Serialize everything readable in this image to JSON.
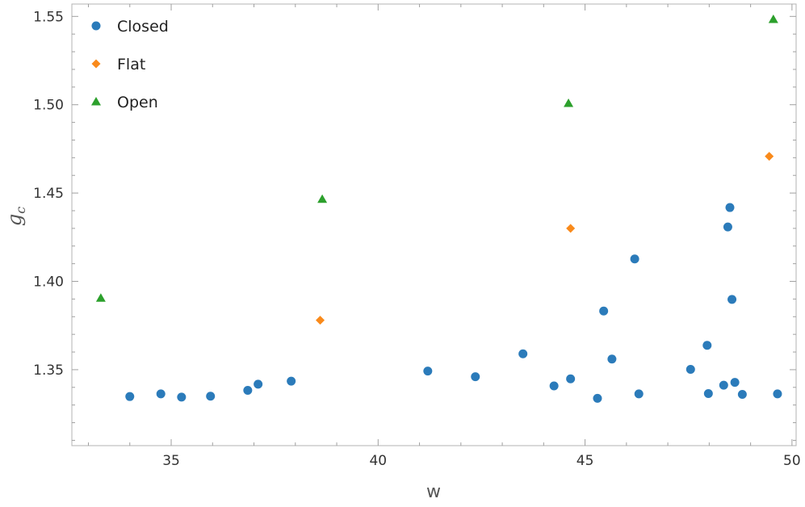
{
  "chart_data": {
    "type": "scatter",
    "xlabel": "w",
    "ylabel_main": "g",
    "ylabel_sub": "c",
    "xlim": [
      32.6,
      50.1
    ],
    "ylim": [
      1.307,
      1.557
    ],
    "x_ticks": [
      35,
      40,
      45,
      50
    ],
    "x_tick_labels": [
      "35",
      "40",
      "45",
      "50"
    ],
    "y_ticks": [
      1.35,
      1.4,
      1.45,
      1.5,
      1.55
    ],
    "y_tick_labels": [
      "1.35",
      "1.40",
      "1.45",
      "1.50",
      "1.55"
    ],
    "grid": false,
    "legend_position": "top-left",
    "series": [
      {
        "name": "Closed",
        "marker": "circle",
        "color": "#2b7bba",
        "points": [
          [
            34.0,
            1.3348
          ],
          [
            34.75,
            1.3363
          ],
          [
            35.25,
            1.3345
          ],
          [
            35.95,
            1.335
          ],
          [
            36.85,
            1.3383
          ],
          [
            37.1,
            1.3418
          ],
          [
            37.9,
            1.3435
          ],
          [
            41.2,
            1.3492
          ],
          [
            42.35,
            1.346
          ],
          [
            43.5,
            1.359
          ],
          [
            44.25,
            1.3408
          ],
          [
            44.65,
            1.3448
          ],
          [
            45.3,
            1.3338
          ],
          [
            45.45,
            1.3832
          ],
          [
            45.65,
            1.356
          ],
          [
            46.2,
            1.4127
          ],
          [
            46.3,
            1.3363
          ],
          [
            47.55,
            1.3502
          ],
          [
            47.95,
            1.3638
          ],
          [
            47.98,
            1.3365
          ],
          [
            48.35,
            1.3412
          ],
          [
            48.45,
            1.4308
          ],
          [
            48.5,
            1.4418
          ],
          [
            48.55,
            1.3898
          ],
          [
            48.62,
            1.3428
          ],
          [
            48.8,
            1.336
          ],
          [
            49.65,
            1.3363
          ]
        ]
      },
      {
        "name": "Flat",
        "marker": "diamond",
        "color": "#f98a1b",
        "points": [
          [
            38.6,
            1.378
          ],
          [
            44.65,
            1.43
          ],
          [
            49.45,
            1.4708
          ]
        ]
      },
      {
        "name": "Open",
        "marker": "triangle",
        "color": "#2ca02c",
        "points": [
          [
            33.3,
            1.3905
          ],
          [
            38.65,
            1.4465
          ],
          [
            44.6,
            1.5008
          ],
          [
            49.55,
            1.5483
          ]
        ]
      }
    ]
  }
}
